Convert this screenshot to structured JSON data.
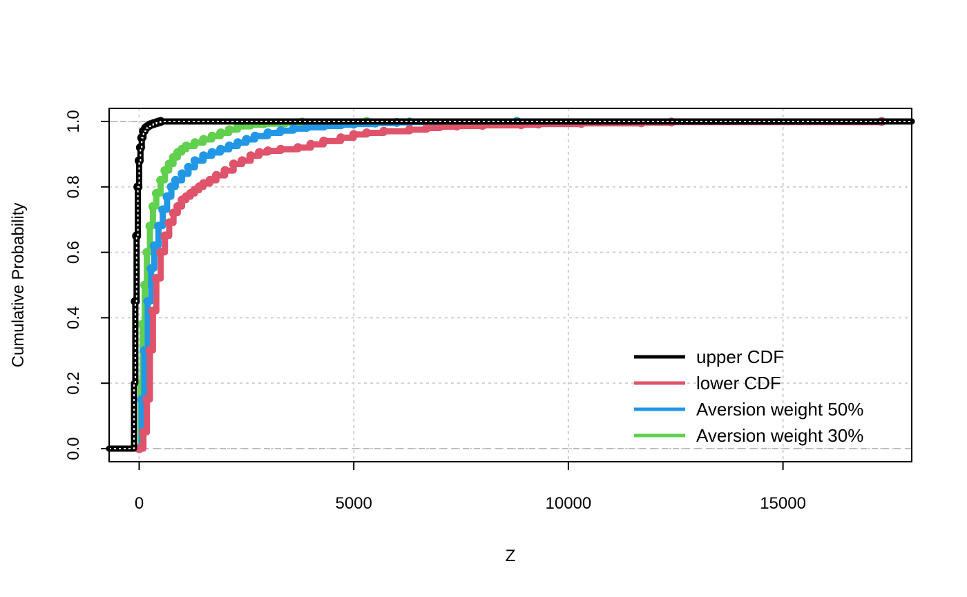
{
  "chart_data": {
    "type": "line",
    "title": "",
    "xlabel": "Z",
    "ylabel": "Cumulative Probability",
    "xlim": [
      -700,
      18000
    ],
    "ylim": [
      -0.04,
      1.04
    ],
    "x_ticks": [
      0,
      5000,
      10000,
      15000
    ],
    "x_tick_labels": [
      "0",
      "5000",
      "10000",
      "15000"
    ],
    "y_ticks": [
      0,
      0.2,
      0.4,
      0.6,
      0.8,
      1
    ],
    "y_tick_labels": [
      "0.0",
      "0.2",
      "0.4",
      "0.6",
      "0.8",
      "1.0"
    ],
    "grid": true,
    "reference_lines_y": [
      0,
      1
    ],
    "legend_position": "bottom-right",
    "series": [
      {
        "name": "upper CDF",
        "color": "#000000",
        "x": [
          -700,
          -150,
          -120,
          -90,
          -60,
          -30,
          0,
          30,
          60,
          100,
          150,
          200,
          260,
          330,
          400,
          450,
          500,
          18000
        ],
        "y": [
          0,
          0,
          0.2,
          0.45,
          0.65,
          0.8,
          0.88,
          0.92,
          0.95,
          0.97,
          0.98,
          0.985,
          0.99,
          0.993,
          0.996,
          0.998,
          1.0,
          1.0
        ]
      },
      {
        "name": "lower CDF",
        "color": "#DF536B",
        "x": [
          -700,
          0,
          100,
          180,
          250,
          320,
          400,
          500,
          600,
          700,
          800,
          900,
          1000,
          1100,
          1200,
          1300,
          1400,
          1500,
          1650,
          1800,
          2000,
          2200,
          2400,
          2600,
          2800,
          3000,
          3300,
          3700,
          4000,
          4300,
          4700,
          5000,
          5300,
          5700,
          6300,
          6700,
          7000,
          7400,
          8000,
          8900,
          9300,
          10300,
          11700,
          12400,
          17300,
          18000
        ],
        "y": [
          0,
          0,
          0.05,
          0.15,
          0.3,
          0.42,
          0.52,
          0.6,
          0.65,
          0.69,
          0.72,
          0.74,
          0.76,
          0.77,
          0.78,
          0.79,
          0.8,
          0.81,
          0.82,
          0.835,
          0.85,
          0.87,
          0.88,
          0.895,
          0.905,
          0.91,
          0.915,
          0.92,
          0.93,
          0.94,
          0.95,
          0.96,
          0.965,
          0.97,
          0.975,
          0.98,
          0.984,
          0.986,
          0.988,
          0.99,
          0.992,
          0.994,
          0.996,
          0.998,
          1.0,
          1.0
        ]
      },
      {
        "name": "Aversion weight 50%",
        "color": "#2297E6",
        "x": [
          -700,
          0,
          60,
          120,
          200,
          280,
          350,
          450,
          550,
          650,
          750,
          850,
          1000,
          1150,
          1300,
          1500,
          1700,
          1900,
          2100,
          2300,
          2500,
          2700,
          3000,
          3300,
          3600,
          3900,
          4300,
          4700,
          5000,
          5500,
          6000,
          6300,
          8800,
          18000
        ],
        "y": [
          0,
          0,
          0.15,
          0.3,
          0.45,
          0.55,
          0.62,
          0.68,
          0.73,
          0.77,
          0.8,
          0.82,
          0.84,
          0.86,
          0.88,
          0.895,
          0.905,
          0.915,
          0.925,
          0.935,
          0.945,
          0.955,
          0.965,
          0.972,
          0.978,
          0.982,
          0.986,
          0.99,
          0.992,
          0.995,
          0.997,
          0.998,
          1.0,
          1.0
        ]
      },
      {
        "name": "Aversion weight 30%",
        "color": "#61D04F",
        "x": [
          -700,
          0,
          40,
          80,
          130,
          180,
          250,
          320,
          400,
          500,
          600,
          700,
          800,
          900,
          1000,
          1100,
          1300,
          1500,
          1700,
          1900,
          2100,
          2300,
          2600,
          2900,
          3400,
          3800,
          5300,
          18000
        ],
        "y": [
          0,
          0,
          0.2,
          0.38,
          0.5,
          0.6,
          0.68,
          0.74,
          0.78,
          0.82,
          0.85,
          0.87,
          0.89,
          0.905,
          0.915,
          0.925,
          0.935,
          0.945,
          0.955,
          0.965,
          0.975,
          0.985,
          0.99,
          0.993,
          0.996,
          0.998,
          1.0,
          1.0
        ]
      }
    ]
  }
}
